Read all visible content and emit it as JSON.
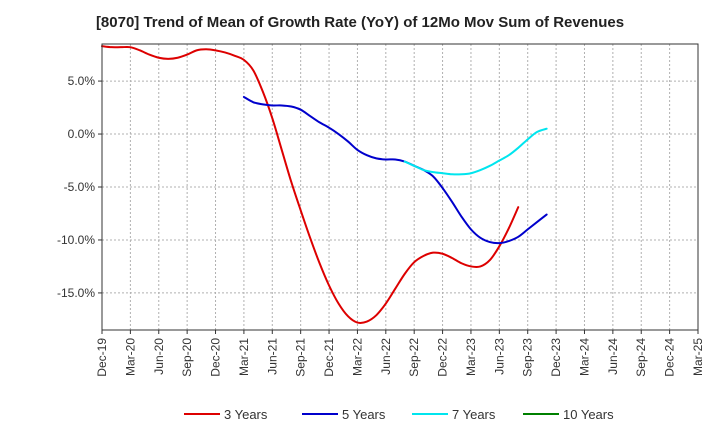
{
  "chart_data": {
    "type": "line",
    "title": "[8070]  Trend of Mean of Growth Rate (YoY) of 12Mo Mov Sum of Revenues",
    "xlabel": "",
    "ylabel": "",
    "ylim": [
      -18.5,
      8.5
    ],
    "yticks": [
      5.0,
      0.0,
      -5.0,
      -10.0,
      -15.0
    ],
    "ytick_labels": [
      "5.0%",
      "0.0%",
      "-5.0%",
      "-10.0%",
      "-15.0%"
    ],
    "x_tick_labels": [
      "Dec-19",
      "Mar-20",
      "Jun-20",
      "Sep-20",
      "Dec-20",
      "Mar-21",
      "Jun-21",
      "Sep-21",
      "Dec-21",
      "Mar-22",
      "Jun-22",
      "Sep-22",
      "Dec-22",
      "Mar-23",
      "Jun-23",
      "Sep-23",
      "Dec-23",
      "Mar-24",
      "Jun-24",
      "Sep-24",
      "Dec-24",
      "Mar-25"
    ],
    "grid": true,
    "legend_position": "bottom",
    "series": [
      {
        "name": "3 Years",
        "color": "#dd0000",
        "points": [
          [
            0,
            8.3
          ],
          [
            1,
            8.2
          ],
          [
            2,
            8.2
          ],
          [
            3,
            8.2
          ],
          [
            4,
            7.9
          ],
          [
            5,
            7.5
          ],
          [
            6,
            7.2
          ],
          [
            7,
            7.1
          ],
          [
            8,
            7.2
          ],
          [
            9,
            7.5
          ],
          [
            10,
            7.9
          ],
          [
            11,
            8.0
          ],
          [
            12,
            7.9
          ],
          [
            13,
            7.7
          ],
          [
            14,
            7.4
          ],
          [
            15,
            7.0
          ],
          [
            16,
            6.0
          ],
          [
            17,
            4.0
          ],
          [
            18,
            1.5
          ],
          [
            19,
            -1.5
          ],
          [
            20,
            -4.5
          ],
          [
            21,
            -7.2
          ],
          [
            22,
            -9.8
          ],
          [
            23,
            -12.2
          ],
          [
            24,
            -14.3
          ],
          [
            25,
            -16.0
          ],
          [
            26,
            -17.2
          ],
          [
            27,
            -17.8
          ],
          [
            28,
            -17.7
          ],
          [
            29,
            -17.1
          ],
          [
            30,
            -16.0
          ],
          [
            31,
            -14.6
          ],
          [
            32,
            -13.2
          ],
          [
            33,
            -12.1
          ],
          [
            34,
            -11.5
          ],
          [
            35,
            -11.2
          ],
          [
            36,
            -11.3
          ],
          [
            37,
            -11.7
          ],
          [
            38,
            -12.2
          ],
          [
            39,
            -12.5
          ],
          [
            40,
            -12.5
          ],
          [
            41,
            -11.9
          ],
          [
            42,
            -10.6
          ],
          [
            43,
            -8.9
          ],
          [
            44,
            -6.9
          ]
        ]
      },
      {
        "name": "5 Years",
        "color": "#0000cc",
        "points": [
          [
            15,
            3.5
          ],
          [
            16,
            3.0
          ],
          [
            17,
            2.8
          ],
          [
            18,
            2.7
          ],
          [
            19,
            2.7
          ],
          [
            20,
            2.6
          ],
          [
            21,
            2.3
          ],
          [
            22,
            1.7
          ],
          [
            23,
            1.1
          ],
          [
            24,
            0.6
          ],
          [
            25,
            0.0
          ],
          [
            26,
            -0.7
          ],
          [
            27,
            -1.5
          ],
          [
            28,
            -2.0
          ],
          [
            29,
            -2.3
          ],
          [
            30,
            -2.4
          ],
          [
            31,
            -2.4
          ],
          [
            32,
            -2.6
          ],
          [
            33,
            -3.0
          ],
          [
            34,
            -3.4
          ],
          [
            35,
            -4.0
          ],
          [
            36,
            -5.1
          ],
          [
            37,
            -6.4
          ],
          [
            38,
            -7.8
          ],
          [
            39,
            -9.0
          ],
          [
            40,
            -9.8
          ],
          [
            41,
            -10.2
          ],
          [
            42,
            -10.3
          ],
          [
            43,
            -10.1
          ],
          [
            44,
            -9.7
          ],
          [
            45,
            -9.0
          ],
          [
            46,
            -8.3
          ],
          [
            47,
            -7.6
          ]
        ]
      },
      {
        "name": "7 Years",
        "color": "#00e5ee",
        "points": [
          [
            32,
            -2.6
          ],
          [
            33,
            -3.0
          ],
          [
            34,
            -3.4
          ],
          [
            35,
            -3.6
          ],
          [
            36,
            -3.7
          ],
          [
            37,
            -3.8
          ],
          [
            38,
            -3.8
          ],
          [
            39,
            -3.7
          ],
          [
            40,
            -3.4
          ],
          [
            41,
            -3.0
          ],
          [
            42,
            -2.5
          ],
          [
            43,
            -2.0
          ],
          [
            44,
            -1.3
          ],
          [
            45,
            -0.5
          ],
          [
            46,
            0.2
          ],
          [
            47,
            0.5
          ]
        ]
      },
      {
        "name": "10 Years",
        "color": "#008000",
        "points": []
      }
    ]
  }
}
